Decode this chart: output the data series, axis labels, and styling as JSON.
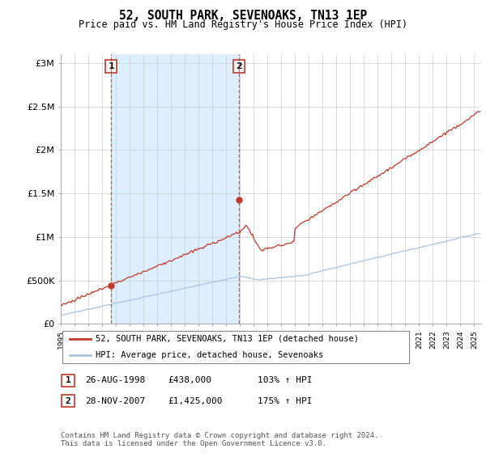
{
  "title": "52, SOUTH PARK, SEVENOAKS, TN13 1EP",
  "subtitle": "Price paid vs. HM Land Registry's House Price Index (HPI)",
  "ylabel_ticks": [
    "£0",
    "£500K",
    "£1M",
    "£1.5M",
    "£2M",
    "£2.5M",
    "£3M"
  ],
  "ytick_values": [
    0,
    500000,
    1000000,
    1500000,
    2000000,
    2500000,
    3000000
  ],
  "ylim": [
    0,
    3100000
  ],
  "xlim_start": 1995.0,
  "xlim_end": 2025.5,
  "hpi_color": "#aac4e0",
  "price_color": "#c0392b",
  "dashed_color": "#c0392b",
  "shade_color": "#ddeeff",
  "marker1_x": 1998.65,
  "marker1_y": 438000,
  "marker2_x": 2007.92,
  "marker2_y": 1425000,
  "marker1_label": "1",
  "marker2_label": "2",
  "legend_line1": "52, SOUTH PARK, SEVENOAKS, TN13 1EP (detached house)",
  "legend_line2": "HPI: Average price, detached house, Sevenoaks",
  "table_row1": [
    "1",
    "26-AUG-1998",
    "£438,000",
    "103% ↑ HPI"
  ],
  "table_row2": [
    "2",
    "28-NOV-2007",
    "£1,425,000",
    "175% ↑ HPI"
  ],
  "footer": "Contains HM Land Registry data © Crown copyright and database right 2024.\nThis data is licensed under the Open Government Licence v3.0.",
  "background_color": "#ffffff",
  "grid_color": "#cccccc"
}
